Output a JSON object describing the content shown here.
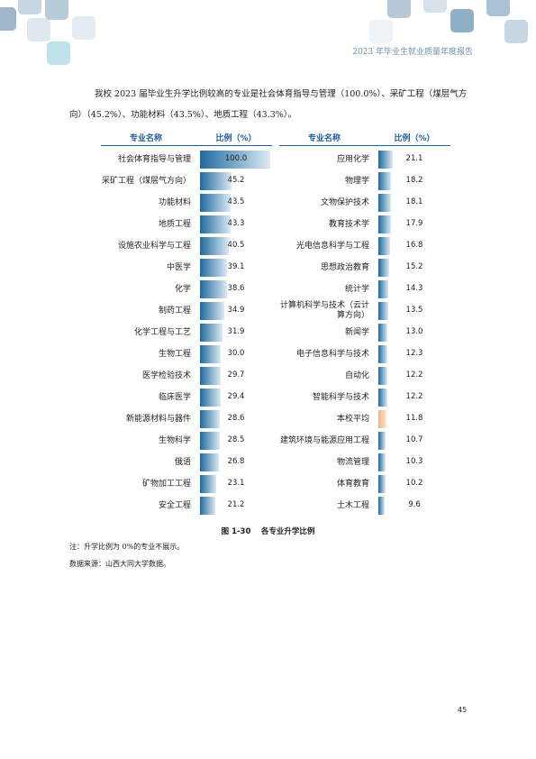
{
  "header": {
    "title": "2023 年毕业生就业质量年度报告"
  },
  "intro": "我校 2023 届毕业生升学比例较高的专业是社会体育指导与管理（100.0%）、采矿工程（煤层气方向）（45.2%）、功能材料（43.5%）、地质工程（43.3%）。",
  "chart_data": [
    {
      "type": "bar",
      "orientation": "horizontal",
      "category_header": "专业名称",
      "value_header": "比例（%）",
      "categories": [
        "社会体育指导与管理",
        "采矿工程（煤层气方向）",
        "功能材料",
        "地质工程",
        "设施农业科学与工程",
        "中医学",
        "化学",
        "制药工程",
        "化学工程与工艺",
        "生物工程",
        "医学检验技术",
        "临床医学",
        "新能源材料与器件",
        "生物科学",
        "俄语",
        "矿物加工工程",
        "安全工程"
      ],
      "values": [
        100,
        45.2,
        43.5,
        43.3,
        40.5,
        39.1,
        38.6,
        34.9,
        31.9,
        30,
        29.7,
        29.4,
        28.6,
        28.5,
        26.8,
        23.1,
        21.2
      ],
      "value_labels": [
        "100.0",
        "45.2",
        "43.5",
        "43.3",
        "40.5",
        "39.1",
        "38.6",
        "34.9",
        "31.9",
        "30.0",
        "29.7",
        "29.4",
        "28.6",
        "28.5",
        "26.8",
        "23.1",
        "21.2"
      ],
      "xlim": [
        0,
        100
      ],
      "color": "#1f6a9e"
    },
    {
      "type": "bar",
      "orientation": "horizontal",
      "category_header": "专业名称",
      "value_header": "比例（%）",
      "categories": [
        "应用化学",
        "物理学",
        "文物保护技术",
        "教育技术学",
        "光电信息科学与工程",
        "思想政治教育",
        "统计学",
        "计算机科学与技术（云计算方向）",
        "新闻学",
        "电子信息科学与技术",
        "自动化",
        "智能科学与技术",
        "本校平均",
        "建筑环境与能源应用工程",
        "物流管理",
        "体育教育",
        "土木工程"
      ],
      "values": [
        21.1,
        18.2,
        18.1,
        17.9,
        16.8,
        15.2,
        14.3,
        13.5,
        13,
        12.3,
        12.2,
        12.2,
        11.8,
        10.7,
        10.3,
        10.2,
        9.6
      ],
      "value_labels": [
        "21.1",
        "18.2",
        "18.1",
        "17.9",
        "16.8",
        "15.2",
        "14.3",
        "13.5",
        "13.0",
        "12.3",
        "12.2",
        "12.2",
        "11.8",
        "10.7",
        "10.3",
        "10.2",
        "9.6"
      ],
      "xlim": [
        0,
        100
      ],
      "color": "#1f6a9e",
      "colors": [
        "#1f6a9e",
        "#1f6a9e",
        "#1f6a9e",
        "#1f6a9e",
        "#1f6a9e",
        "#1f6a9e",
        "#1f6a9e",
        "#1f6a9e",
        "#1f6a9e",
        "#1f6a9e",
        "#1f6a9e",
        "#1f6a9e",
        "#f4b183",
        "#1f6a9e",
        "#1f6a9e",
        "#1f6a9e",
        "#1f6a9e"
      ]
    }
  ],
  "caption": "图 1-30　 各专业升学比例",
  "notes": [
    "注：升学比例为 0%的专业不展示。",
    "数据来源：山西大同大学数据。"
  ],
  "page_number": "45"
}
